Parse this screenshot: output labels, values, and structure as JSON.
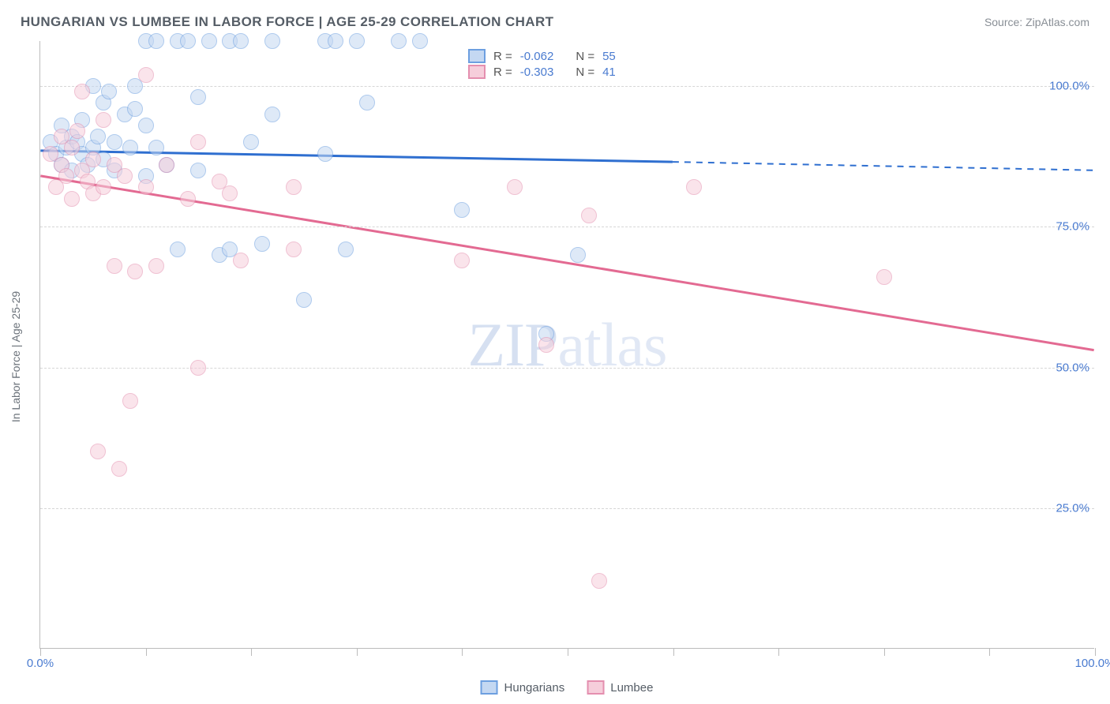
{
  "title": "HUNGARIAN VS LUMBEE IN LABOR FORCE | AGE 25-29 CORRELATION CHART",
  "source": "Source: ZipAtlas.com",
  "watermark": "ZIPatlas",
  "ylabel": "In Labor Force | Age 25-29",
  "chart": {
    "type": "scatter",
    "background_color": "#ffffff",
    "grid_color": "#d6d6d6",
    "axis_color": "#bcbcbc",
    "value_color": "#4a7bd0",
    "xlim": [
      0,
      100
    ],
    "ylim": [
      0,
      108
    ],
    "yticks": [
      {
        "v": 25,
        "label": "25.0%"
      },
      {
        "v": 50,
        "label": "50.0%"
      },
      {
        "v": 75,
        "label": "75.0%"
      },
      {
        "v": 100,
        "label": "100.0%"
      }
    ],
    "xticks_major": [
      0,
      100
    ],
    "xticks_minor": [
      10,
      20,
      30,
      40,
      50,
      60,
      70,
      80,
      90
    ],
    "xlabels": [
      {
        "v": 0,
        "label": "0.0%"
      },
      {
        "v": 100,
        "label": "100.0%"
      }
    ],
    "marker_radius": 10,
    "marker_opacity": 0.55
  },
  "legend_top": [
    {
      "swatch_fill": "#c4d8f2",
      "swatch_border": "#6d9fe0",
      "r_label": "R =",
      "r": "-0.062",
      "n_label": "N =",
      "n": "55"
    },
    {
      "swatch_fill": "#f6cedb",
      "swatch_border": "#e48faf",
      "r_label": "R =",
      "r": "-0.303",
      "n_label": "N =",
      "n": "41"
    }
  ],
  "legend_bottom": [
    {
      "swatch_fill": "#c4d8f2",
      "swatch_border": "#6d9fe0",
      "label": "Hungarians"
    },
    {
      "swatch_fill": "#f6cedb",
      "swatch_border": "#e48faf",
      "label": "Lumbee"
    }
  ],
  "series": [
    {
      "name": "Hungarians",
      "color_fill": "#c4d8f2",
      "color_border": "#6d9fe0",
      "trend_color": "#2f6fd0",
      "trend_width": 3,
      "trend": {
        "x1": 0,
        "y1": 88.5,
        "x2": 60,
        "y2": 86.5,
        "x2_dash": 100,
        "y2_dash": 85.0
      },
      "points": [
        {
          "x": 1,
          "y": 90
        },
        {
          "x": 1.5,
          "y": 88
        },
        {
          "x": 2,
          "y": 93
        },
        {
          "x": 2,
          "y": 86
        },
        {
          "x": 2.5,
          "y": 89
        },
        {
          "x": 3,
          "y": 91
        },
        {
          "x": 3,
          "y": 85
        },
        {
          "x": 3.5,
          "y": 90
        },
        {
          "x": 4,
          "y": 88
        },
        {
          "x": 4,
          "y": 94
        },
        {
          "x": 4.5,
          "y": 86
        },
        {
          "x": 5,
          "y": 89
        },
        {
          "x": 5,
          "y": 100
        },
        {
          "x": 5.5,
          "y": 91
        },
        {
          "x": 6,
          "y": 87
        },
        {
          "x": 6,
          "y": 97
        },
        {
          "x": 6.5,
          "y": 99
        },
        {
          "x": 7,
          "y": 85
        },
        {
          "x": 7,
          "y": 90
        },
        {
          "x": 8,
          "y": 95
        },
        {
          "x": 8.5,
          "y": 89
        },
        {
          "x": 9,
          "y": 96
        },
        {
          "x": 9,
          "y": 100
        },
        {
          "x": 10,
          "y": 84
        },
        {
          "x": 10,
          "y": 108
        },
        {
          "x": 10,
          "y": 93
        },
        {
          "x": 11,
          "y": 108
        },
        {
          "x": 11,
          "y": 89
        },
        {
          "x": 12,
          "y": 86
        },
        {
          "x": 13,
          "y": 108
        },
        {
          "x": 13,
          "y": 71
        },
        {
          "x": 14,
          "y": 108
        },
        {
          "x": 15,
          "y": 98
        },
        {
          "x": 15,
          "y": 85
        },
        {
          "x": 16,
          "y": 108
        },
        {
          "x": 17,
          "y": 70
        },
        {
          "x": 18,
          "y": 108
        },
        {
          "x": 18,
          "y": 71
        },
        {
          "x": 19,
          "y": 108
        },
        {
          "x": 20,
          "y": 90
        },
        {
          "x": 21,
          "y": 72
        },
        {
          "x": 22,
          "y": 108
        },
        {
          "x": 22,
          "y": 95
        },
        {
          "x": 25,
          "y": 62
        },
        {
          "x": 27,
          "y": 88
        },
        {
          "x": 27,
          "y": 108
        },
        {
          "x": 28,
          "y": 108
        },
        {
          "x": 29,
          "y": 71
        },
        {
          "x": 30,
          "y": 108
        },
        {
          "x": 31,
          "y": 97
        },
        {
          "x": 34,
          "y": 108
        },
        {
          "x": 36,
          "y": 108
        },
        {
          "x": 40,
          "y": 78
        },
        {
          "x": 48,
          "y": 56
        },
        {
          "x": 51,
          "y": 70
        }
      ]
    },
    {
      "name": "Lumbee",
      "color_fill": "#f6cedb",
      "color_border": "#e48faf",
      "trend_color": "#e36a92",
      "trend_width": 3,
      "trend": {
        "x1": 0,
        "y1": 84,
        "x2": 100,
        "y2": 53,
        "x2_dash": 100,
        "y2_dash": 53
      },
      "points": [
        {
          "x": 1,
          "y": 88
        },
        {
          "x": 1.5,
          "y": 82
        },
        {
          "x": 2,
          "y": 86
        },
        {
          "x": 2,
          "y": 91
        },
        {
          "x": 2.5,
          "y": 84
        },
        {
          "x": 3,
          "y": 89
        },
        {
          "x": 3,
          "y": 80
        },
        {
          "x": 3.5,
          "y": 92
        },
        {
          "x": 4,
          "y": 85
        },
        {
          "x": 4,
          "y": 99
        },
        {
          "x": 4.5,
          "y": 83
        },
        {
          "x": 5,
          "y": 87
        },
        {
          "x": 5,
          "y": 81
        },
        {
          "x": 5.5,
          "y": 35
        },
        {
          "x": 6,
          "y": 94
        },
        {
          "x": 6,
          "y": 82
        },
        {
          "x": 7,
          "y": 86
        },
        {
          "x": 7,
          "y": 68
        },
        {
          "x": 7.5,
          "y": 32
        },
        {
          "x": 8,
          "y": 84
        },
        {
          "x": 8.5,
          "y": 44
        },
        {
          "x": 9,
          "y": 67
        },
        {
          "x": 10,
          "y": 102
        },
        {
          "x": 10,
          "y": 82
        },
        {
          "x": 11,
          "y": 68
        },
        {
          "x": 12,
          "y": 86
        },
        {
          "x": 14,
          "y": 80
        },
        {
          "x": 15,
          "y": 50
        },
        {
          "x": 15,
          "y": 90
        },
        {
          "x": 17,
          "y": 83
        },
        {
          "x": 18,
          "y": 81
        },
        {
          "x": 19,
          "y": 69
        },
        {
          "x": 24,
          "y": 71
        },
        {
          "x": 24,
          "y": 82
        },
        {
          "x": 40,
          "y": 69
        },
        {
          "x": 45,
          "y": 82
        },
        {
          "x": 48,
          "y": 54
        },
        {
          "x": 52,
          "y": 77
        },
        {
          "x": 53,
          "y": 12
        },
        {
          "x": 62,
          "y": 82
        },
        {
          "x": 80,
          "y": 66
        }
      ]
    }
  ]
}
